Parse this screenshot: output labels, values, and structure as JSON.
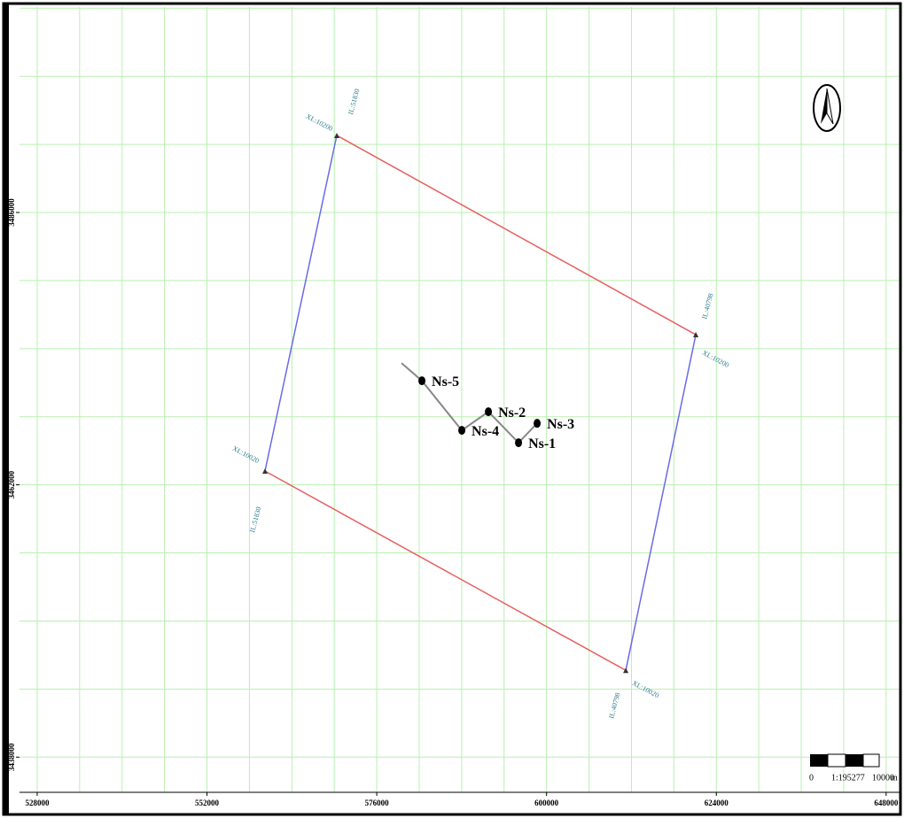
{
  "map": {
    "xlim": [
      525500,
      649900
    ],
    "ylim": [
      3434900,
      3504100
    ],
    "grid_step": 6000,
    "grid_color": "#b8f0b0",
    "xticks": [
      528000,
      552000,
      576000,
      600000,
      624000,
      648000
    ],
    "yticks": [
      3438000,
      3462000,
      3486000
    ],
    "survey": {
      "inline_color": "#e86060",
      "crossline_color": "#6a6ae8",
      "label_color": "#2a7a8a",
      "corners": [
        {
          "x": 570350,
          "y": 3492790,
          "xl": "XL:10200",
          "il": "IL:51830"
        },
        {
          "x": 621100,
          "y": 3475230,
          "xl": "XL:10200",
          "il": "IL:40798"
        },
        {
          "x": 611200,
          "y": 3445650,
          "xl": "XL:10020",
          "il": "IL:40798"
        },
        {
          "x": 560200,
          "y": 3463210,
          "xl": "XL:10020",
          "il": "IL:51830"
        }
      ]
    },
    "track": {
      "x": [
        579500,
        582380,
        588020,
        591780,
        596040,
        598670
      ],
      "y": [
        3472730,
        3471170,
        3466800,
        3468440,
        3465710,
        3467420
      ]
    },
    "wells": [
      {
        "name": "Ns-5",
        "x": 582380,
        "y": 3471170
      },
      {
        "name": "Ns-2",
        "x": 591780,
        "y": 3468440
      },
      {
        "name": "Ns-4",
        "x": 588020,
        "y": 3466800
      },
      {
        "name": "Ns-1",
        "x": 596040,
        "y": 3465710
      },
      {
        "name": "Ns-3",
        "x": 598670,
        "y": 3467420
      }
    ],
    "scale_bar": {
      "start": "0",
      "ratio": "1:195277",
      "end": "10000",
      "unit": "m"
    }
  }
}
